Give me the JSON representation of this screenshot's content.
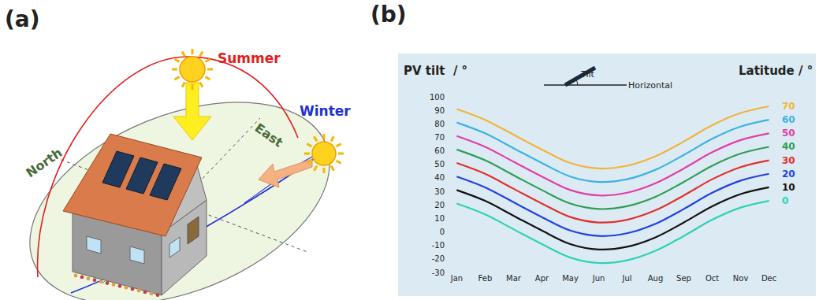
{
  "panel_a": {
    "label": "(a)",
    "texts": {
      "summer": "Summer",
      "east": "East",
      "winter": "Winter",
      "north": "North"
    }
  },
  "chart_data": {
    "type": "line",
    "panel_label": "(b)",
    "y_axis_label": "PV tilt  / °",
    "legend_title": "Latitude / °",
    "inset_labels": {
      "tilt": "Tilt",
      "horizontal": "Horizontal"
    },
    "categories": [
      "Jan",
      "Feb",
      "Mar",
      "Apr",
      "May",
      "Jun",
      "Jul",
      "Aug",
      "Sep",
      "Oct",
      "Nov",
      "Dec"
    ],
    "series": [
      {
        "name": "70",
        "color": "#f2b33d",
        "values": [
          91,
          83,
          72,
          61,
          51,
          47,
          49,
          56,
          67,
          79,
          88,
          93
        ]
      },
      {
        "name": "60",
        "color": "#3fb1e3",
        "values": [
          81,
          73,
          62,
          51,
          41,
          37,
          39,
          46,
          57,
          69,
          78,
          83
        ]
      },
      {
        "name": "50",
        "color": "#e23fa5",
        "values": [
          71,
          63,
          52,
          41,
          31,
          27,
          29,
          36,
          47,
          59,
          68,
          73
        ]
      },
      {
        "name": "40",
        "color": "#2f9e55",
        "values": [
          61,
          53,
          42,
          31,
          21,
          17,
          19,
          26,
          37,
          49,
          58,
          63
        ]
      },
      {
        "name": "30",
        "color": "#e2302f",
        "values": [
          51,
          43,
          32,
          21,
          11,
          7,
          9,
          16,
          27,
          39,
          48,
          53
        ]
      },
      {
        "name": "20",
        "color": "#2242e0",
        "values": [
          41,
          33,
          22,
          11,
          1,
          -3,
          -1,
          6,
          17,
          29,
          38,
          43
        ]
      },
      {
        "name": "10",
        "color": "#111111",
        "values": [
          31,
          23,
          12,
          1,
          -9,
          -13,
          -11,
          -4,
          7,
          19,
          28,
          33
        ]
      },
      {
        "name": "0",
        "color": "#2fd2b4",
        "values": [
          21,
          13,
          2,
          -9,
          -19,
          -23,
          -21,
          -14,
          -3,
          9,
          18,
          23
        ]
      }
    ],
    "ylim": [
      -30,
      100
    ],
    "yticks": [
      -30,
      -20,
      -10,
      0,
      10,
      20,
      30,
      40,
      50,
      60,
      70,
      80,
      90,
      100
    ],
    "grid": false
  }
}
